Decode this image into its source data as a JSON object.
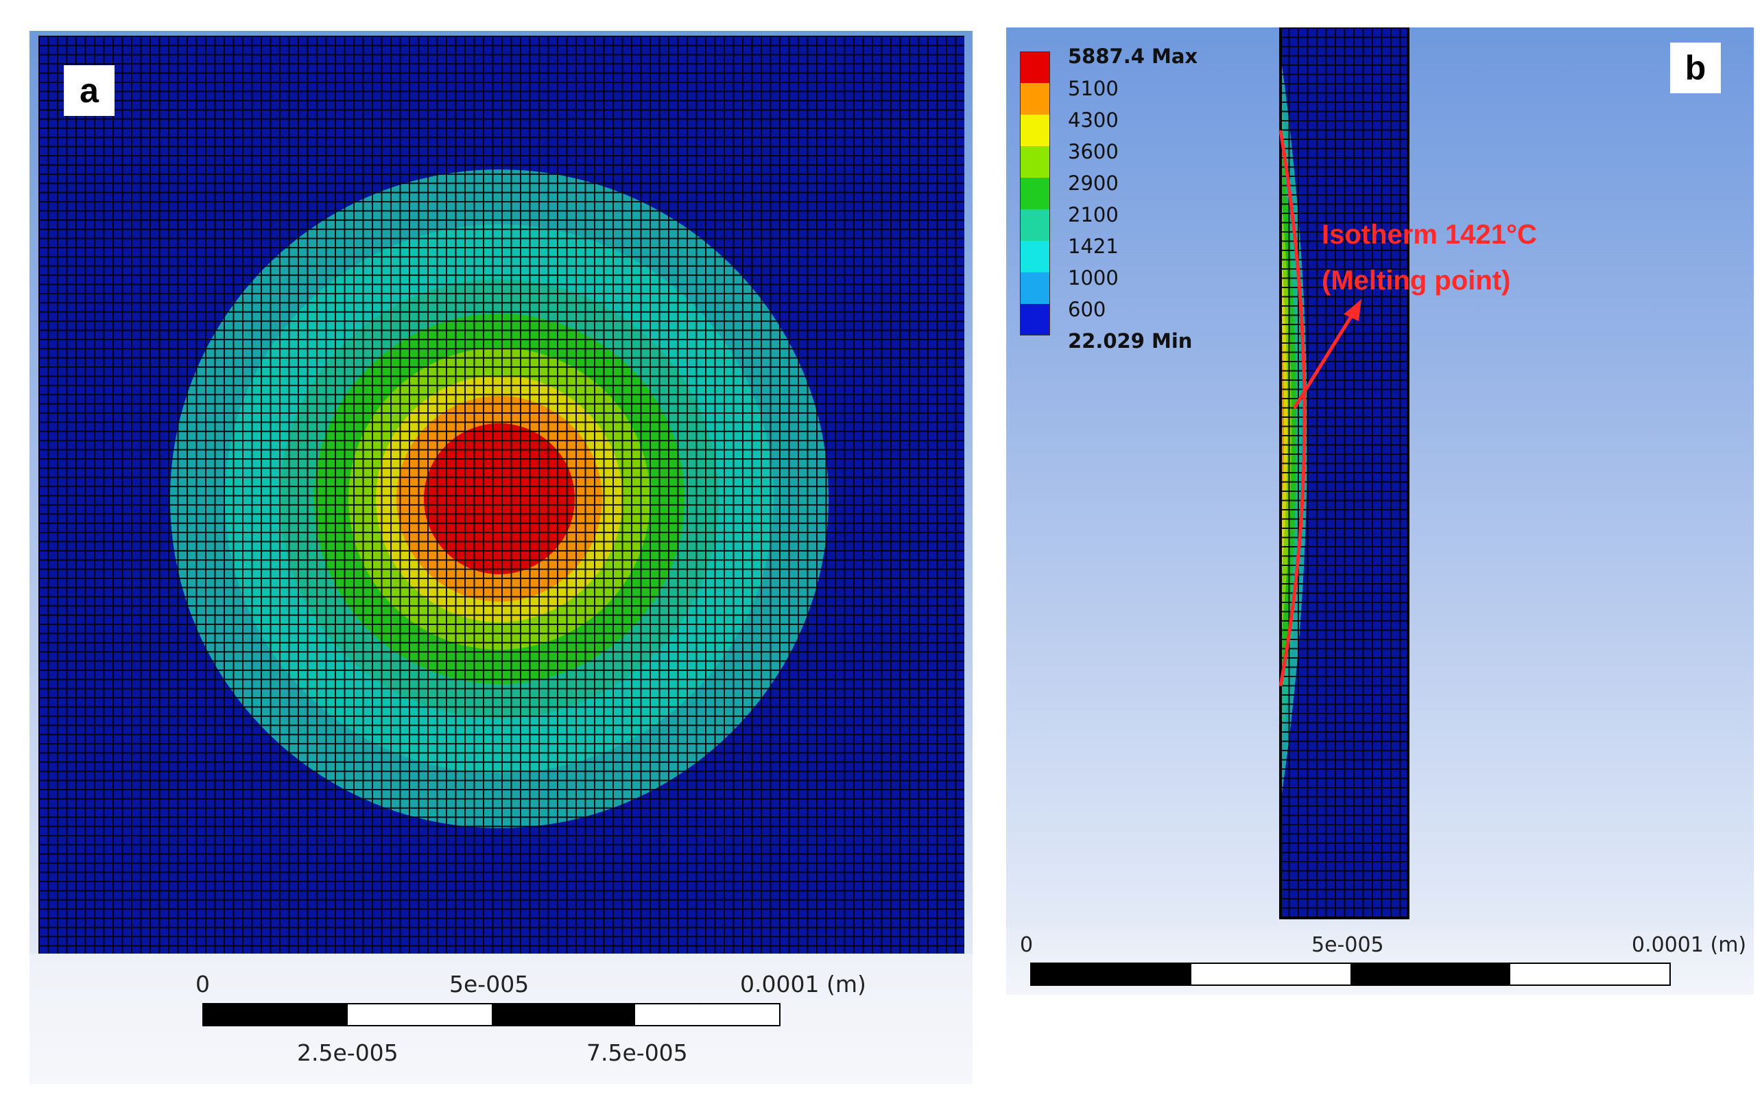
{
  "panel_a": {
    "label": "a",
    "scale_bar": {
      "top_labels": [
        "0",
        "5e-005",
        "0.0001 (m)"
      ],
      "bottom_labels": [
        "2.5e-005",
        "7.5e-005"
      ]
    }
  },
  "panel_b": {
    "label": "b",
    "legend": [
      {
        "label": "5887.4 Max",
        "color": "#e60000"
      },
      {
        "label": "5100",
        "color": "#ff9a00"
      },
      {
        "label": "4300",
        "color": "#f4f400"
      },
      {
        "label": "3600",
        "color": "#8ce600"
      },
      {
        "label": "2900",
        "color": "#1fcc1f"
      },
      {
        "label": "2100",
        "color": "#1fd6a0"
      },
      {
        "label": "1421",
        "color": "#14e6e6"
      },
      {
        "label": "1000",
        "color": "#1aa8f0"
      },
      {
        "label": "600",
        "color": "#0a18d8"
      },
      {
        "label": "22.029 Min",
        "color": ""
      }
    ],
    "annotation": {
      "line1": "Isotherm 1421°C",
      "line2": "(Melting point)"
    },
    "scale_bar": {
      "labels": [
        "0",
        "5e-005",
        "0.0001 (m)"
      ]
    }
  },
  "colors": {
    "background_blue": "#0614a0",
    "annotation_red": "#ff2a2a"
  }
}
